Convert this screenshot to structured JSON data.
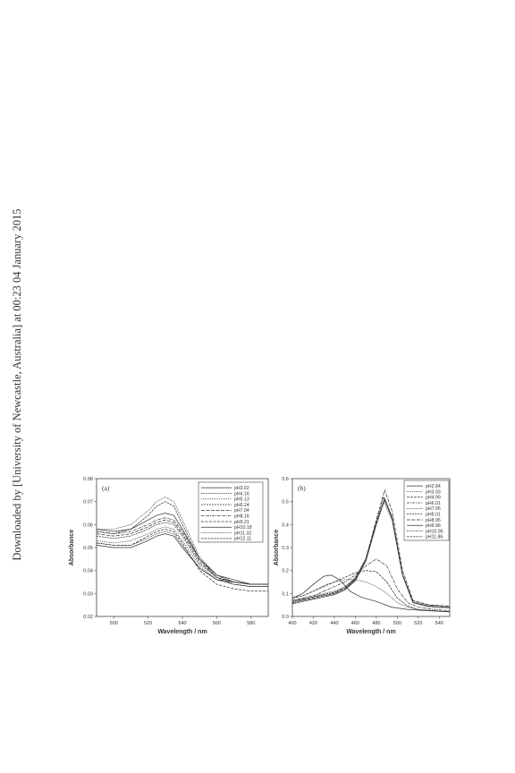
{
  "sidebar": {
    "text": "Downloaded by [University of Newcastle, Australia] at 00:23 04 January 2015"
  },
  "chart_data": [
    {
      "type": "line",
      "panel_label": "(a)",
      "xlabel": "Wavelength / nm",
      "ylabel": "Absorbance",
      "xlim": [
        490,
        590
      ],
      "ylim": [
        0.02,
        0.08
      ],
      "xticks": [
        500,
        520,
        540,
        560,
        580
      ],
      "yticks": [
        0.02,
        0.03,
        0.04,
        0.05,
        0.06,
        0.07,
        0.08
      ],
      "legend_position": "top-right",
      "series": [
        {
          "name": "pH3.02",
          "dash": "",
          "x": [
            490,
            500,
            510,
            520,
            525,
            530,
            535,
            540,
            550,
            560,
            570,
            580,
            590
          ],
          "y": [
            0.051,
            0.05,
            0.05,
            0.053,
            0.055,
            0.056,
            0.055,
            0.05,
            0.041,
            0.036,
            0.035,
            0.034,
            0.034
          ]
        },
        {
          "name": "pH4.16",
          "dash": "1.5,1",
          "x": [
            490,
            500,
            510,
            520,
            525,
            530,
            535,
            540,
            550,
            560,
            570,
            580,
            590
          ],
          "y": [
            0.052,
            0.051,
            0.051,
            0.054,
            0.056,
            0.057,
            0.056,
            0.051,
            0.041,
            0.036,
            0.034,
            0.033,
            0.033
          ]
        },
        {
          "name": "pH5.13",
          "dash": "1,1",
          "x": [
            490,
            500,
            510,
            520,
            525,
            530,
            535,
            540,
            550,
            560,
            570,
            580,
            590
          ],
          "y": [
            0.053,
            0.052,
            0.053,
            0.056,
            0.058,
            0.059,
            0.058,
            0.053,
            0.042,
            0.036,
            0.034,
            0.033,
            0.033
          ]
        },
        {
          "name": "pH6.24",
          "dash": "2,1",
          "x": [
            490,
            500,
            510,
            520,
            525,
            530,
            535,
            540,
            550,
            560,
            570,
            580,
            590
          ],
          "y": [
            0.055,
            0.054,
            0.055,
            0.058,
            0.06,
            0.061,
            0.06,
            0.055,
            0.043,
            0.037,
            0.035,
            0.034,
            0.034
          ]
        },
        {
          "name": "pH7.04",
          "dash": "4,1.5",
          "x": [
            490,
            500,
            510,
            520,
            525,
            530,
            535,
            540,
            550,
            560,
            570,
            580,
            590
          ],
          "y": [
            0.056,
            0.055,
            0.056,
            0.059,
            0.061,
            0.062,
            0.061,
            0.056,
            0.044,
            0.037,
            0.035,
            0.034,
            0.034
          ]
        },
        {
          "name": "pH8.16",
          "dash": "3,1,1,1",
          "x": [
            490,
            500,
            510,
            520,
            525,
            530,
            535,
            540,
            550,
            560,
            570,
            580,
            590
          ],
          "y": [
            0.057,
            0.056,
            0.057,
            0.06,
            0.062,
            0.063,
            0.062,
            0.057,
            0.045,
            0.038,
            0.035,
            0.034,
            0.034
          ]
        },
        {
          "name": "pH9.21",
          "dash": "3,1.5",
          "x": [
            490,
            500,
            510,
            520,
            525,
            530,
            535,
            540,
            550,
            560,
            570,
            580,
            590
          ],
          "y": [
            0.052,
            0.051,
            0.051,
            0.055,
            0.057,
            0.058,
            0.057,
            0.052,
            0.04,
            0.034,
            0.032,
            0.031,
            0.031
          ]
        },
        {
          "name": "pH10.18",
          "dash": "",
          "x": [
            490,
            500,
            510,
            520,
            525,
            530,
            535,
            540,
            550,
            560,
            570,
            580,
            590
          ],
          "y": [
            0.058,
            0.057,
            0.058,
            0.062,
            0.064,
            0.065,
            0.064,
            0.058,
            0.045,
            0.038,
            0.036,
            0.034,
            0.034
          ]
        },
        {
          "name": "pH11.32",
          "dash": "0.8,0.8",
          "x": [
            490,
            500,
            510,
            520,
            525,
            530,
            535,
            540,
            550,
            560,
            570,
            580,
            590
          ],
          "y": [
            0.058,
            0.058,
            0.06,
            0.066,
            0.07,
            0.072,
            0.07,
            0.062,
            0.046,
            0.038,
            0.035,
            0.034,
            0.034
          ]
        },
        {
          "name": "pH12.11",
          "dash": "2.5,1",
          "x": [
            490,
            500,
            510,
            520,
            525,
            530,
            535,
            540,
            550,
            560,
            570,
            580,
            590
          ],
          "y": [
            0.057,
            0.056,
            0.058,
            0.064,
            0.068,
            0.07,
            0.068,
            0.06,
            0.045,
            0.037,
            0.034,
            0.033,
            0.033
          ]
        }
      ]
    },
    {
      "type": "line",
      "panel_label": "(b)",
      "xlabel": "Wavelength / nm",
      "ylabel": "Absorbance",
      "xlim": [
        400,
        550
      ],
      "ylim": [
        0.0,
        0.6
      ],
      "xticks": [
        400,
        420,
        440,
        460,
        480,
        500,
        520,
        540
      ],
      "yticks": [
        0.0,
        0.1,
        0.2,
        0.3,
        0.4,
        0.5,
        0.6
      ],
      "legend_position": "top-right",
      "series": [
        {
          "name": "pH2.84",
          "dash": "",
          "x": [
            400,
            410,
            420,
            430,
            437,
            445,
            455,
            465,
            480,
            495,
            510,
            530,
            550
          ],
          "y": [
            0.08,
            0.1,
            0.14,
            0.175,
            0.18,
            0.16,
            0.11,
            0.085,
            0.065,
            0.04,
            0.03,
            0.025,
            0.02
          ]
        },
        {
          "name": "pH3.93",
          "dash": "1,1",
          "x": [
            400,
            410,
            420,
            430,
            440,
            450,
            460,
            470,
            480,
            490,
            500,
            510,
            520,
            535,
            550
          ],
          "y": [
            0.08,
            0.09,
            0.11,
            0.135,
            0.15,
            0.16,
            0.16,
            0.15,
            0.13,
            0.1,
            0.06,
            0.04,
            0.03,
            0.025,
            0.02
          ]
        },
        {
          "name": "pH4.99",
          "dash": "3,1",
          "x": [
            400,
            410,
            420,
            430,
            440,
            450,
            460,
            470,
            480,
            490,
            500,
            510,
            520,
            535,
            550
          ],
          "y": [
            0.08,
            0.09,
            0.11,
            0.13,
            0.15,
            0.17,
            0.19,
            0.2,
            0.195,
            0.15,
            0.08,
            0.045,
            0.03,
            0.025,
            0.02
          ]
        },
        {
          "name": "pH6.01",
          "dash": "3,1,1,1",
          "x": [
            400,
            410,
            420,
            430,
            440,
            450,
            460,
            470,
            480,
            490,
            500,
            510,
            520,
            535,
            550
          ],
          "y": [
            0.07,
            0.08,
            0.09,
            0.11,
            0.13,
            0.15,
            0.18,
            0.22,
            0.25,
            0.22,
            0.12,
            0.06,
            0.04,
            0.03,
            0.025
          ]
        },
        {
          "name": "pH7.06",
          "dash": "0.8,0.8",
          "x": [
            400,
            410,
            420,
            430,
            440,
            450,
            460,
            470,
            480,
            487,
            495,
            505,
            515,
            530,
            550
          ],
          "y": [
            0.07,
            0.08,
            0.09,
            0.1,
            0.11,
            0.13,
            0.17,
            0.25,
            0.4,
            0.5,
            0.42,
            0.18,
            0.06,
            0.04,
            0.035
          ]
        },
        {
          "name": "pH8.01",
          "dash": "2,1",
          "x": [
            400,
            410,
            420,
            430,
            440,
            450,
            460,
            470,
            480,
            487,
            495,
            505,
            515,
            530,
            550
          ],
          "y": [
            0.065,
            0.075,
            0.085,
            0.095,
            0.105,
            0.125,
            0.165,
            0.25,
            0.41,
            0.52,
            0.43,
            0.18,
            0.06,
            0.045,
            0.04
          ]
        },
        {
          "name": "pH8.95",
          "dash": "4,1.5",
          "x": [
            400,
            410,
            420,
            430,
            440,
            450,
            460,
            470,
            480,
            488,
            495,
            505,
            515,
            530,
            550
          ],
          "y": [
            0.06,
            0.07,
            0.08,
            0.09,
            0.1,
            0.12,
            0.16,
            0.25,
            0.42,
            0.55,
            0.46,
            0.2,
            0.07,
            0.05,
            0.045
          ]
        },
        {
          "name": "pH9.96",
          "dash": "",
          "x": [
            400,
            410,
            420,
            430,
            440,
            450,
            460,
            470,
            480,
            488,
            495,
            505,
            515,
            530,
            550
          ],
          "y": [
            0.055,
            0.065,
            0.075,
            0.085,
            0.095,
            0.115,
            0.155,
            0.24,
            0.4,
            0.51,
            0.43,
            0.18,
            0.06,
            0.045,
            0.04
          ]
        },
        {
          "name": "pH10.95",
          "dash": "1.5,1",
          "x": [
            400,
            410,
            420,
            430,
            440,
            450,
            460,
            470,
            480,
            488,
            495,
            505,
            515,
            530,
            550
          ],
          "y": [
            0.06,
            0.07,
            0.08,
            0.09,
            0.1,
            0.12,
            0.16,
            0.245,
            0.405,
            0.515,
            0.435,
            0.185,
            0.065,
            0.05,
            0.045
          ]
        },
        {
          "name": "pH11.86",
          "dash": "2.5,1",
          "x": [
            400,
            410,
            420,
            430,
            440,
            450,
            460,
            470,
            480,
            488,
            495,
            505,
            515,
            530,
            550
          ],
          "y": [
            0.065,
            0.075,
            0.085,
            0.095,
            0.105,
            0.125,
            0.165,
            0.25,
            0.41,
            0.505,
            0.425,
            0.18,
            0.06,
            0.045,
            0.04
          ]
        }
      ]
    }
  ]
}
